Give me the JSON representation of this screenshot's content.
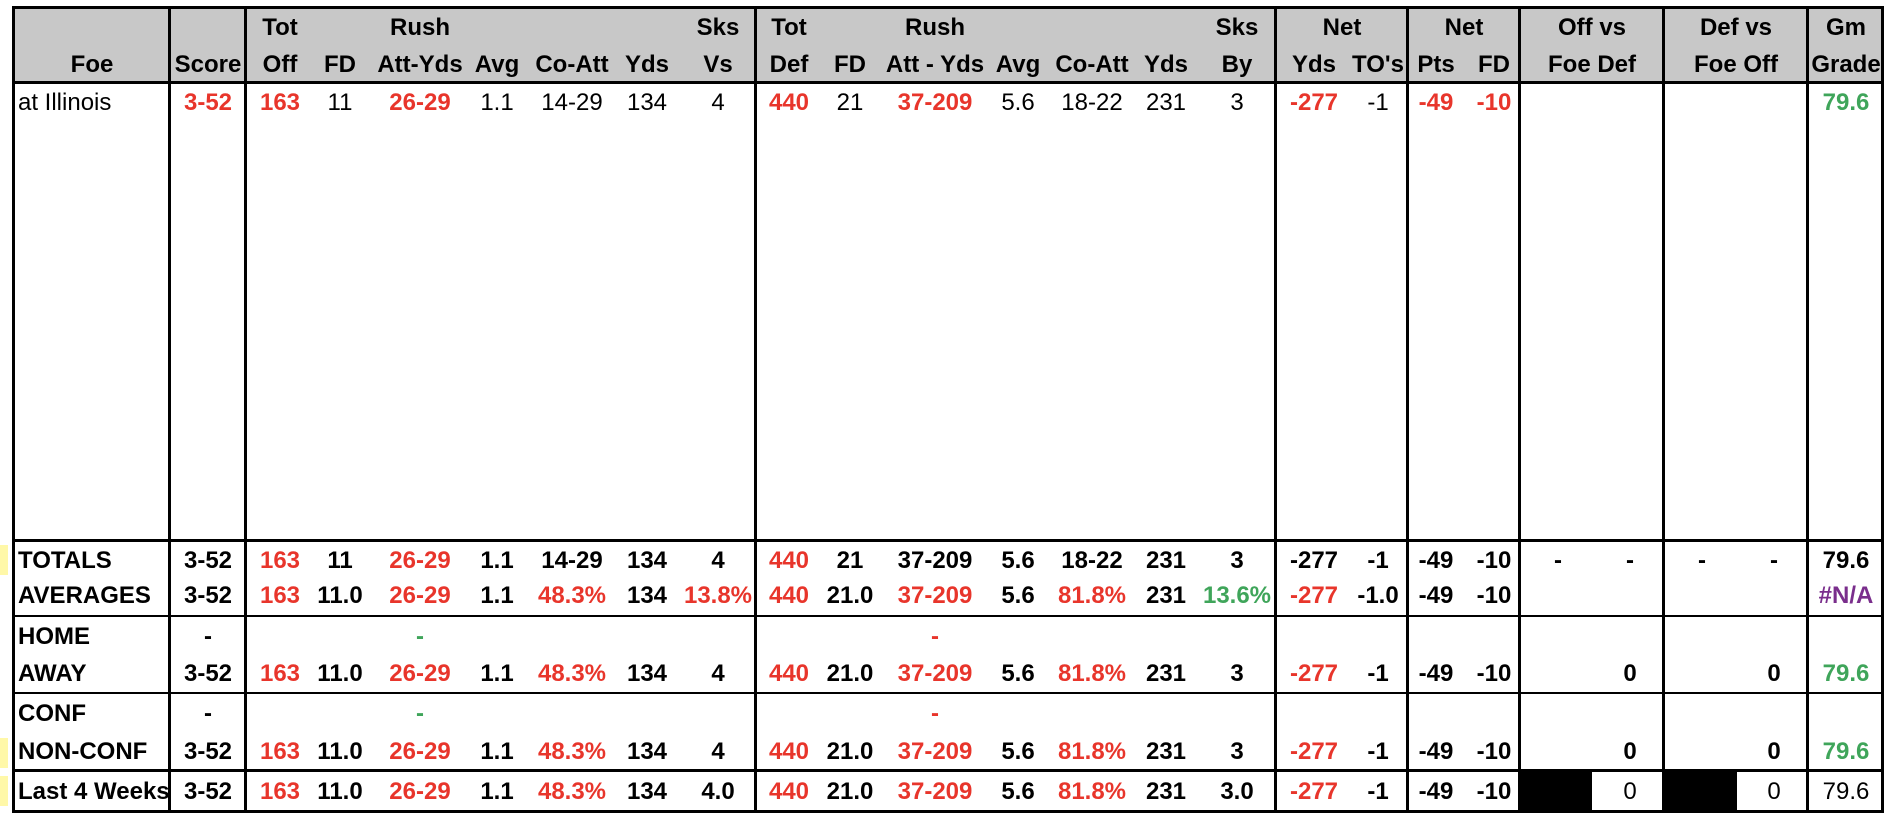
{
  "header": {
    "row1": {
      "tot_off": "Tot",
      "rush_off": "Rush",
      "sks_vs": "Sks",
      "tot_def": "Tot",
      "rush_def": "Rush",
      "sks_by": "Sks",
      "net_yds": "Net",
      "net_pts": "Net",
      "off_vs": "Off vs",
      "def_vs": "Def vs",
      "gm": "Gm"
    },
    "row2": {
      "foe": "Foe",
      "score": "Score",
      "off": "Off",
      "fd": "FD",
      "att_yds": "Att-Yds",
      "avg": "Avg",
      "co_att": "Co-Att",
      "yds": "Yds",
      "vs": "Vs",
      "def": "Def",
      "fd2": "FD",
      "att_yds2": "Att - Yds",
      "avg2": "Avg",
      "co_att2": "Co-Att",
      "yds2": "Yds",
      "by": "By",
      "net_yds": "Yds",
      "tos": "TO's",
      "pts": "Pts",
      "fd3": "FD",
      "foe_def": "Foe Def",
      "foe_off": "Foe Off",
      "grade": "Grade"
    }
  },
  "game": {
    "foe": "at Illinois",
    "score": "3-52",
    "tot_off": "163",
    "fd": "11",
    "rush": "26-29",
    "avg": "1.1",
    "co_att": "14-29",
    "yds": "134",
    "sks_vs": "4",
    "tot_def": "440",
    "fd2": "21",
    "rush2": "37-209",
    "avg2": "5.6",
    "co_att2": "18-22",
    "yds2": "231",
    "sks_by": "3",
    "net_yds": "-277",
    "tos": "-1",
    "net_pts": "-49",
    "net_fd": "-10",
    "grade": "79.6"
  },
  "totals": {
    "label": "TOTALS",
    "score": "3-52",
    "tot_off": "163",
    "fd": "11",
    "rush": "26-29",
    "avg": "1.1",
    "co_att": "14-29",
    "yds": "134",
    "sks_vs": "4",
    "tot_def": "440",
    "fd2": "21",
    "rush2": "37-209",
    "avg2": "5.6",
    "co_att2": "18-22",
    "yds2": "231",
    "sks_by": "3",
    "net_yds": "-277",
    "tos": "-1",
    "net_pts": "-49",
    "net_fd": "-10",
    "off_a": "-",
    "off_b": "-",
    "def_a": "-",
    "def_b": "-",
    "grade": "79.6"
  },
  "averages": {
    "label": "AVERAGES",
    "score": "3-52",
    "tot_off": "163",
    "fd": "11.0",
    "rush": "26-29",
    "avg": "1.1",
    "co_att": "48.3%",
    "yds": "134",
    "sks_vs": "13.8%",
    "tot_def": "440",
    "fd2": "21.0",
    "rush2": "37-209",
    "avg2": "5.6",
    "co_att2": "81.8%",
    "yds2": "231",
    "sks_by": "13.6%",
    "net_yds": "-277",
    "tos": "-1.0",
    "net_pts": "-49",
    "net_fd": "-10",
    "grade": "#N/A"
  },
  "home": {
    "label": "HOME",
    "score": "-",
    "rush": "-",
    "rush2": "-"
  },
  "away": {
    "label": "AWAY",
    "score": "3-52",
    "tot_off": "163",
    "fd": "11.0",
    "rush": "26-29",
    "avg": "1.1",
    "co_att": "48.3%",
    "yds": "134",
    "sks_vs": "4",
    "tot_def": "440",
    "fd2": "21.0",
    "rush2": "37-209",
    "avg2": "5.6",
    "co_att2": "81.8%",
    "yds2": "231",
    "sks_by": "3",
    "net_yds": "-277",
    "tos": "-1",
    "net_pts": "-49",
    "net_fd": "-10",
    "off": "0",
    "def": "0",
    "grade": "79.6"
  },
  "conf": {
    "label": "CONF",
    "score": "-",
    "rush": "-",
    "rush2": "-"
  },
  "nonconf": {
    "label": "NON-CONF",
    "score": "3-52",
    "tot_off": "163",
    "fd": "11.0",
    "rush": "26-29",
    "avg": "1.1",
    "co_att": "48.3%",
    "yds": "134",
    "sks_vs": "4",
    "tot_def": "440",
    "fd2": "21.0",
    "rush2": "37-209",
    "avg2": "5.6",
    "co_att2": "81.8%",
    "yds2": "231",
    "sks_by": "3",
    "net_yds": "-277",
    "tos": "-1",
    "net_pts": "-49",
    "net_fd": "-10",
    "off": "0",
    "def": "0",
    "grade": "79.6"
  },
  "last4": {
    "label": "Last 4 Weeks",
    "score": "3-52",
    "tot_off": "163",
    "fd": "11.0",
    "rush": "26-29",
    "avg": "1.1",
    "co_att": "48.3%",
    "yds": "134",
    "sks_vs": "4.0",
    "tot_def": "440",
    "fd2": "21.0",
    "rush2": "37-209",
    "avg2": "5.6",
    "co_att2": "81.8%",
    "yds2": "231",
    "sks_by": "3.0",
    "net_yds": "-277",
    "tos": "-1",
    "net_pts": "-49",
    "net_fd": "-10",
    "off": "0",
    "def": "0",
    "grade": "79.6"
  },
  "colors": {
    "header_bg": "#c8c8c8",
    "negative": "#e8352b",
    "positive": "#3fa55a",
    "na": "#7a2e8c"
  }
}
